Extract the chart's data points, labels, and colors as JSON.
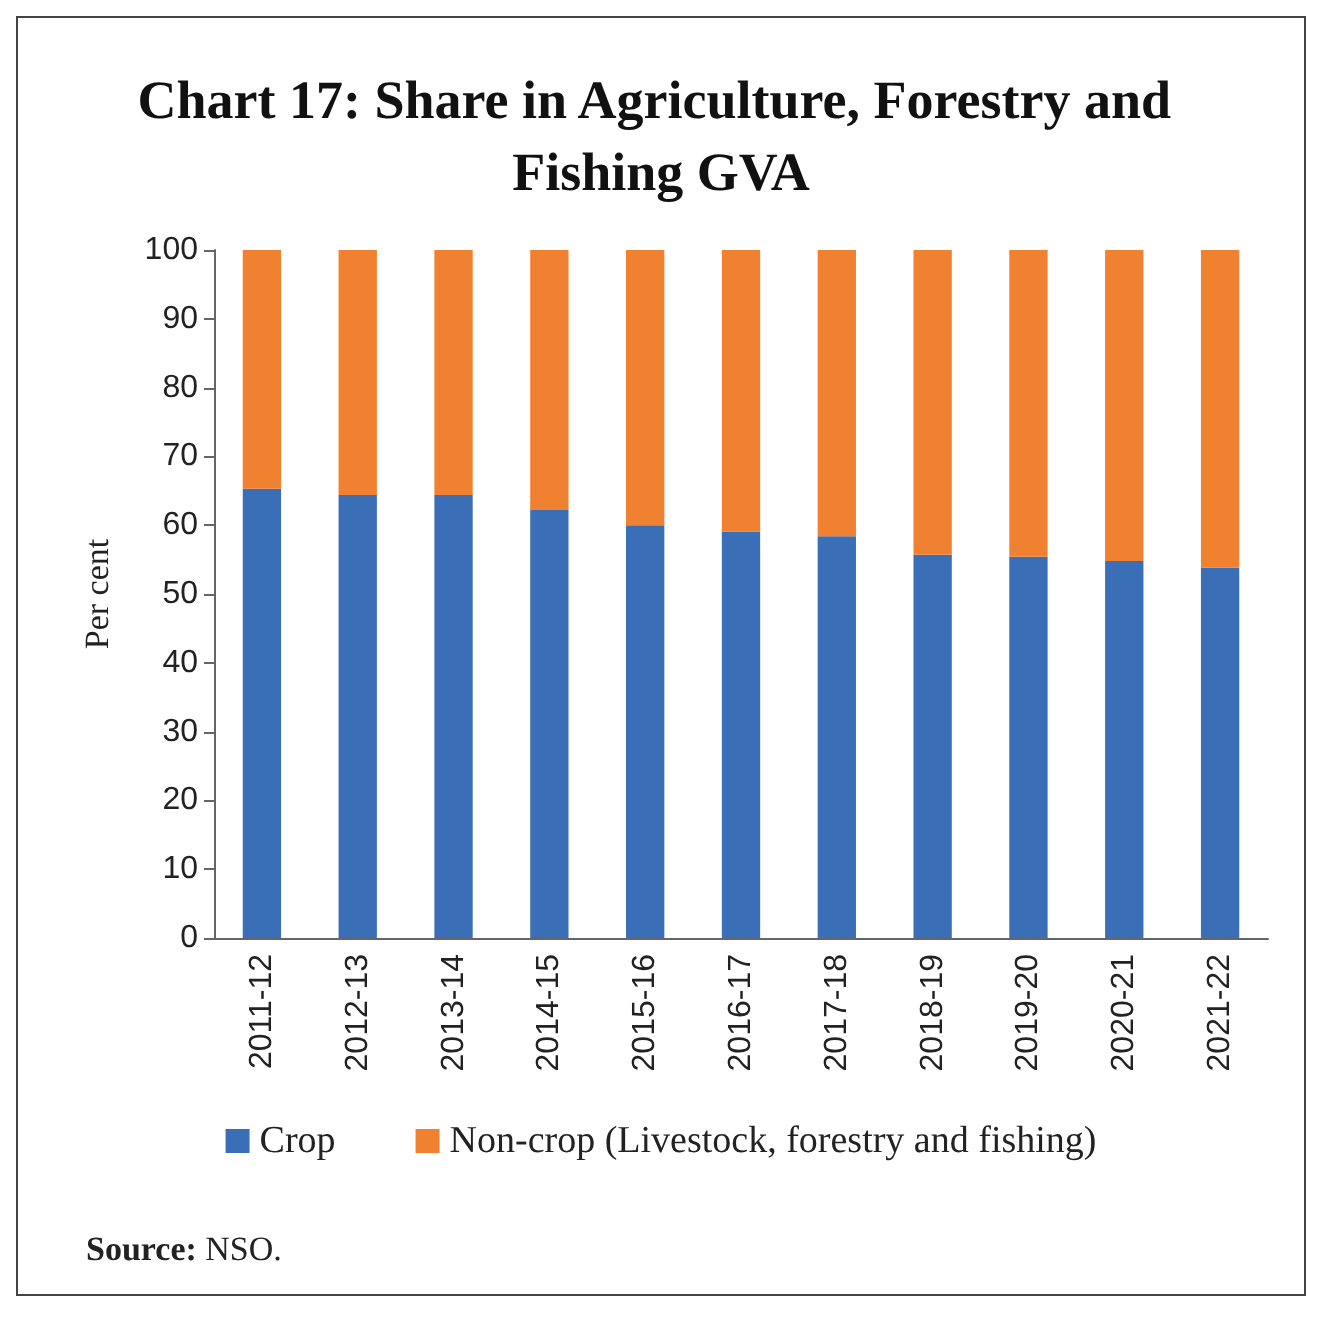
{
  "chart_data": {
    "type": "bar",
    "title": "Chart 17: Share in Agriculture, Forestry and Fishing GVA",
    "ylabel": "Per cent",
    "categories": [
      "2011-12",
      "2012-13",
      "2013-14",
      "2014-15",
      "2015-16",
      "2016-17",
      "2017-18",
      "2018-19",
      "2019-20",
      "2020-21",
      "2021-22"
    ],
    "stacked": true,
    "series": [
      {
        "name": "Crop",
        "color": "#3a6fb7",
        "values": [
          65.3,
          64.4,
          64.4,
          62.2,
          60.0,
          59.1,
          58.4,
          55.7,
          55.4,
          54.8,
          53.8
        ]
      },
      {
        "name": "Non-crop (Livestock, forestry and fishing)",
        "color": "#f08131",
        "values": [
          34.7,
          35.6,
          35.6,
          37.8,
          40.0,
          40.9,
          41.6,
          44.3,
          44.6,
          45.2,
          46.2
        ]
      }
    ],
    "ylim": [
      0,
      100
    ],
    "yticks": [
      0,
      10,
      20,
      30,
      40,
      50,
      60,
      70,
      80,
      90,
      100
    ],
    "grid": false,
    "legend": "bottom",
    "annotations": [
      "Source: NSO."
    ]
  }
}
